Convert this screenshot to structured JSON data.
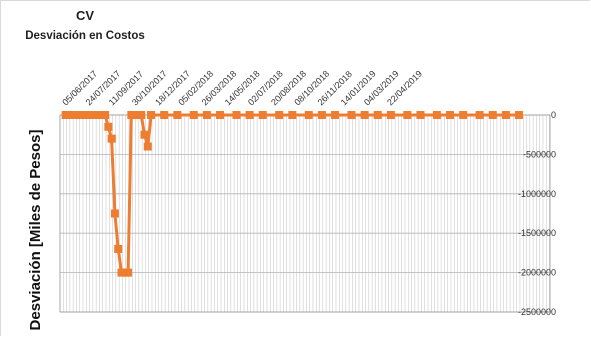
{
  "chart_data": {
    "type": "line",
    "title": "CV",
    "subtitle": "Desviación en Costos",
    "xlabel": "",
    "ylabel": "Desviación  [Miles de Pesos]",
    "x_tick_labels": [
      "05/06/2017",
      "24/07/2017",
      "11/09/2017",
      "30/10/2017",
      "18/12/2017",
      "05/02/2018",
      "26/03/2018",
      "14/05/2018",
      "02/07/2018",
      "20/08/2018",
      "08/10/2018",
      "26/11/2018",
      "14/01/2019",
      "04/03/2019",
      "22/04/2019"
    ],
    "y_tick_labels": [
      "0",
      "-500000",
      "-1000000",
      "-1500000",
      "-2000000",
      "-2500000"
    ],
    "ylim": [
      -2500000,
      0
    ],
    "y_ticks": [
      0,
      -500000,
      -1000000,
      -1500000,
      -2000000,
      -2500000
    ],
    "series": [
      {
        "color": "#ed7d31",
        "x": [
          "2017-04-07",
          "2017-04-21",
          "2017-05-05",
          "2017-05-19",
          "2017-06-02",
          "2017-06-16",
          "2017-06-30",
          "2017-07-07",
          "2017-07-14",
          "2017-07-21",
          "2017-07-28",
          "2017-08-04",
          "2017-08-11",
          "2017-08-18",
          "2017-08-25",
          "2017-09-01",
          "2017-09-08",
          "2017-09-15",
          "2017-09-22",
          "2017-09-29",
          "2017-10-06",
          "2017-11-03",
          "2017-12-01",
          "2018-01-05",
          "2018-02-02",
          "2018-03-02",
          "2018-04-06",
          "2018-05-04",
          "2018-06-01",
          "2018-07-06",
          "2018-08-03",
          "2018-09-07",
          "2018-10-05",
          "2018-11-02",
          "2018-12-07",
          "2019-01-04",
          "2019-02-01",
          "2019-03-01",
          "2019-04-05",
          "2019-05-03",
          "2019-06-07",
          "2019-07-05",
          "2019-08-02",
          "2019-09-06",
          "2019-10-04",
          "2019-11-01",
          "2019-11-29"
        ],
        "y": [
          0,
          0,
          0,
          0,
          0,
          0,
          0,
          -150000,
          -300000,
          -1250000,
          -1700000,
          -2000000,
          -2000000,
          -2000000,
          0,
          0,
          0,
          0,
          -250000,
          -400000,
          0,
          0,
          0,
          0,
          0,
          0,
          0,
          0,
          0,
          0,
          0,
          0,
          0,
          0,
          0,
          0,
          0,
          0,
          0,
          0,
          0,
          0,
          0,
          0,
          0,
          0,
          0
        ]
      }
    ],
    "grid": true,
    "legend": "none"
  }
}
